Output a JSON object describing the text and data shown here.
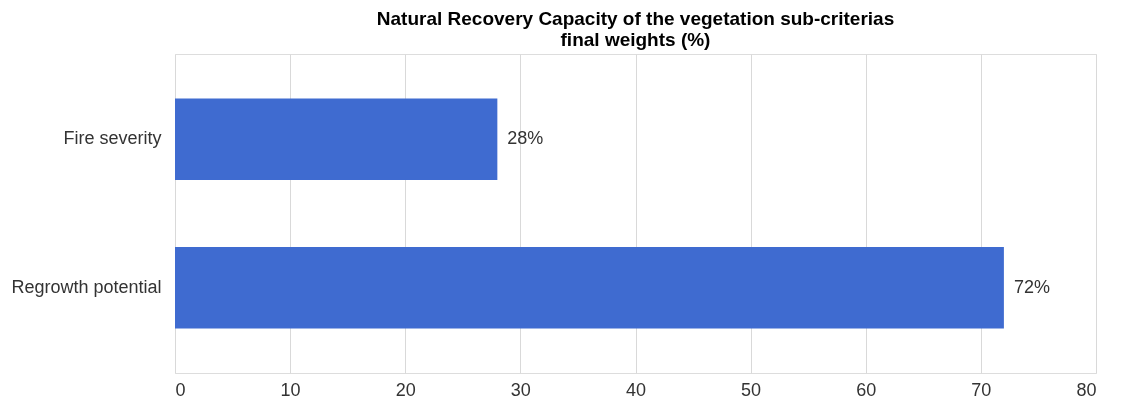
{
  "chart_data": {
    "type": "bar",
    "orientation": "horizontal",
    "title": "Natural Recovery Capacity of the vegetation sub-criterias final weights (%)",
    "categories": [
      "Fire severity",
      "Regrowth potential"
    ],
    "values": [
      28,
      72
    ],
    "value_labels": [
      "28%",
      "72%"
    ],
    "color": "#3f6bd0",
    "xlim": [
      0,
      80
    ],
    "xticks": [
      0,
      10,
      20,
      30,
      40,
      50,
      60,
      70,
      80
    ],
    "grid": "x"
  }
}
